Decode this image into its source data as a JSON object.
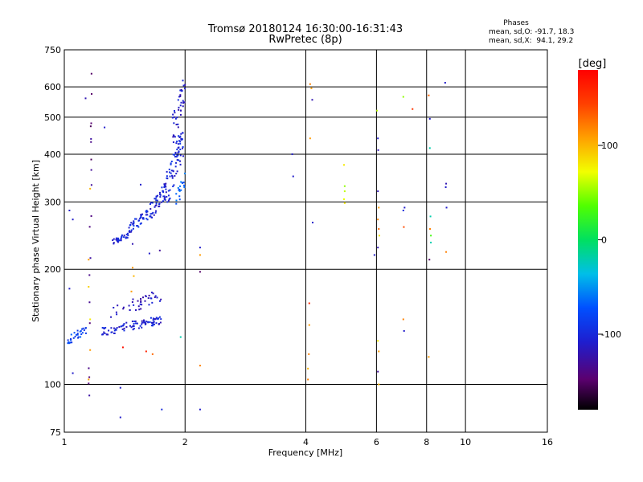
{
  "chart_data": {
    "type": "scatter",
    "title": "Tromsø 20180124 16:30:00-16:31:43",
    "subtitle": "RwPretec (8p)",
    "xlabel": "Frequency [MHz]",
    "ylabel": "Stationary phase Virtual Height [km]",
    "x_scale": "log",
    "y_scale": "log",
    "xlim": [
      1,
      16
    ],
    "ylim": [
      75,
      750
    ],
    "x_ticks": [
      1,
      2,
      4,
      6,
      8,
      10,
      16
    ],
    "y_ticks": [
      75,
      100,
      200,
      300,
      400,
      500,
      600,
      750
    ],
    "grid": true,
    "stats": {
      "heading": "Phases",
      "line_o": "mean, sd,O: -91.7, 18.3",
      "line_x": "mean, sd,X:  94.1, 29.2"
    },
    "colorbar": {
      "label": "[deg]",
      "range": [
        -180,
        180
      ],
      "ticks": [
        -100,
        0,
        100
      ],
      "tick_labels": [
        "-100",
        "0",
        "100"
      ]
    },
    "clusters": [
      {
        "x": [
          1.32,
          1.45
        ],
        "y": [
          232,
          250
        ],
        "phase": -105,
        "count": 30
      },
      {
        "x": [
          1.45,
          1.62
        ],
        "y": [
          250,
          285
        ],
        "phase": -100,
        "count": 45
      },
      {
        "x": [
          1.62,
          1.8
        ],
        "y": [
          270,
          335
        ],
        "phase": -105,
        "count": 55
      },
      {
        "x": [
          1.8,
          1.98
        ],
        "y": [
          300,
          470
        ],
        "phase": -100,
        "count": 70
      },
      {
        "x": [
          1.86,
          2.0
        ],
        "y": [
          430,
          640
        ],
        "phase": -110,
        "count": 40
      },
      {
        "x": [
          1.9,
          2.0
        ],
        "y": [
          290,
          360
        ],
        "phase": -70,
        "count": 18
      },
      {
        "x": [
          1.02,
          1.14
        ],
        "y": [
          128,
          142
        ],
        "phase": -80,
        "count": 30
      },
      {
        "x": [
          1.24,
          1.75
        ],
        "y": [
          135,
          150
        ],
        "phase": -105,
        "count": 90
      },
      {
        "x": [
          1.3,
          1.75
        ],
        "y": [
          150,
          175
        ],
        "phase": -115,
        "count": 40
      },
      {
        "x": [
          1.15,
          1.17
        ],
        "y": [
          82,
          650
        ],
        "phase": -140,
        "count": 18
      }
    ],
    "points": [
      {
        "x": 1.03,
        "y": 285,
        "phase": -110
      },
      {
        "x": 1.05,
        "y": 270,
        "phase": -110
      },
      {
        "x": 1.03,
        "y": 178,
        "phase": -110
      },
      {
        "x": 1.05,
        "y": 107,
        "phase": -110
      },
      {
        "x": 1.13,
        "y": 560,
        "phase": -120
      },
      {
        "x": 1.16,
        "y": 325,
        "phase": 100
      },
      {
        "x": 1.15,
        "y": 212,
        "phase": 110
      },
      {
        "x": 1.15,
        "y": 180,
        "phase": 90
      },
      {
        "x": 1.16,
        "y": 148,
        "phase": 80
      },
      {
        "x": 1.16,
        "y": 123,
        "phase": 110
      },
      {
        "x": 1.15,
        "y": 103,
        "phase": 110
      },
      {
        "x": 1.17,
        "y": 575,
        "phase": -150
      },
      {
        "x": 1.26,
        "y": 470,
        "phase": -110
      },
      {
        "x": 1.38,
        "y": 98,
        "phase": -110
      },
      {
        "x": 1.38,
        "y": 82,
        "phase": -110
      },
      {
        "x": 1.4,
        "y": 125,
        "phase": 170
      },
      {
        "x": 1.48,
        "y": 202,
        "phase": 110
      },
      {
        "x": 1.49,
        "y": 192,
        "phase": 100
      },
      {
        "x": 1.47,
        "y": 175,
        "phase": 110
      },
      {
        "x": 1.6,
        "y": 122,
        "phase": 160
      },
      {
        "x": 1.66,
        "y": 120,
        "phase": 130
      },
      {
        "x": 1.63,
        "y": 220,
        "phase": -110
      },
      {
        "x": 1.73,
        "y": 224,
        "phase": -130
      },
      {
        "x": 1.55,
        "y": 333,
        "phase": -110
      },
      {
        "x": 1.48,
        "y": 233,
        "phase": -120
      },
      {
        "x": 1.75,
        "y": 86,
        "phase": -100
      },
      {
        "x": 1.95,
        "y": 133,
        "phase": -20
      },
      {
        "x": 2.18,
        "y": 228,
        "phase": -110
      },
      {
        "x": 2.18,
        "y": 218,
        "phase": 110
      },
      {
        "x": 2.18,
        "y": 197,
        "phase": -150
      },
      {
        "x": 2.18,
        "y": 112,
        "phase": 120
      },
      {
        "x": 2.18,
        "y": 86,
        "phase": -110
      },
      {
        "x": 3.7,
        "y": 400,
        "phase": -110
      },
      {
        "x": 3.72,
        "y": 350,
        "phase": -110
      },
      {
        "x": 4.1,
        "y": 610,
        "phase": 120
      },
      {
        "x": 4.13,
        "y": 595,
        "phase": 110
      },
      {
        "x": 4.15,
        "y": 555,
        "phase": -120
      },
      {
        "x": 4.1,
        "y": 440,
        "phase": 110
      },
      {
        "x": 4.16,
        "y": 265,
        "phase": -110
      },
      {
        "x": 4.08,
        "y": 163,
        "phase": 160
      },
      {
        "x": 4.08,
        "y": 143,
        "phase": 110
      },
      {
        "x": 4.07,
        "y": 120,
        "phase": 120
      },
      {
        "x": 4.05,
        "y": 110,
        "phase": 100
      },
      {
        "x": 4.05,
        "y": 103,
        "phase": 120
      },
      {
        "x": 4.98,
        "y": 375,
        "phase": 80
      },
      {
        "x": 5.0,
        "y": 330,
        "phase": 50
      },
      {
        "x": 5.0,
        "y": 320,
        "phase": 60
      },
      {
        "x": 4.98,
        "y": 305,
        "phase": 70
      },
      {
        "x": 5.0,
        "y": 298,
        "phase": 80
      },
      {
        "x": 6.02,
        "y": 520,
        "phase": 60
      },
      {
        "x": 6.05,
        "y": 440,
        "phase": -110
      },
      {
        "x": 6.06,
        "y": 410,
        "phase": -120
      },
      {
        "x": 6.05,
        "y": 320,
        "phase": -120
      },
      {
        "x": 6.08,
        "y": 290,
        "phase": 110
      },
      {
        "x": 6.05,
        "y": 270,
        "phase": 120
      },
      {
        "x": 6.08,
        "y": 255,
        "phase": 130
      },
      {
        "x": 6.1,
        "y": 245,
        "phase": 80
      },
      {
        "x": 5.93,
        "y": 218,
        "phase": -110
      },
      {
        "x": 6.05,
        "y": 228,
        "phase": -120
      },
      {
        "x": 6.05,
        "y": 130,
        "phase": 80
      },
      {
        "x": 6.08,
        "y": 122,
        "phase": 110
      },
      {
        "x": 6.05,
        "y": 108,
        "phase": -130
      },
      {
        "x": 6.08,
        "y": 100,
        "phase": 100
      },
      {
        "x": 7.0,
        "y": 565,
        "phase": 50
      },
      {
        "x": 7.38,
        "y": 525,
        "phase": 150
      },
      {
        "x": 7.05,
        "y": 290,
        "phase": -110
      },
      {
        "x": 7.0,
        "y": 285,
        "phase": -100
      },
      {
        "x": 7.02,
        "y": 258,
        "phase": 140
      },
      {
        "x": 7.0,
        "y": 148,
        "phase": 120
      },
      {
        "x": 7.03,
        "y": 138,
        "phase": -110
      },
      {
        "x": 8.1,
        "y": 570,
        "phase": 130
      },
      {
        "x": 8.15,
        "y": 495,
        "phase": -110
      },
      {
        "x": 8.15,
        "y": 415,
        "phase": -20
      },
      {
        "x": 8.18,
        "y": 275,
        "phase": -20
      },
      {
        "x": 8.16,
        "y": 255,
        "phase": 120
      },
      {
        "x": 8.2,
        "y": 245,
        "phase": 30
      },
      {
        "x": 8.2,
        "y": 235,
        "phase": -20
      },
      {
        "x": 8.13,
        "y": 212,
        "phase": -150
      },
      {
        "x": 8.1,
        "y": 118,
        "phase": 110
      },
      {
        "x": 8.9,
        "y": 615,
        "phase": -110
      },
      {
        "x": 8.95,
        "y": 335,
        "phase": -120
      },
      {
        "x": 8.93,
        "y": 328,
        "phase": -110
      },
      {
        "x": 8.97,
        "y": 290,
        "phase": -110
      },
      {
        "x": 8.95,
        "y": 222,
        "phase": 120
      }
    ]
  }
}
